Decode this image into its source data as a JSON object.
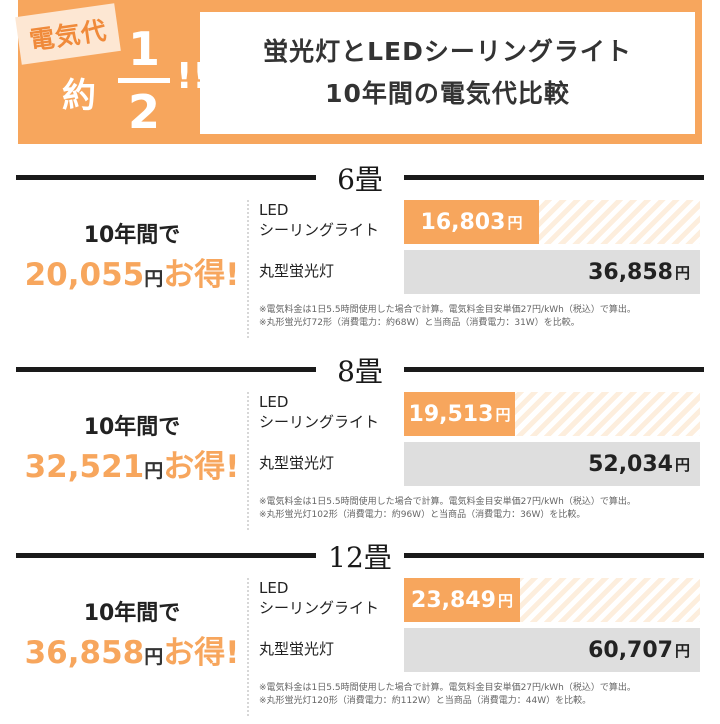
{
  "header": {
    "badge": "電気代",
    "yaku": "約",
    "fraction_num": "1",
    "fraction_den": "2",
    "excl": "!!",
    "title_line1": "蛍光灯とLEDシーリングライト",
    "title_line2": "10年間の電気代比較"
  },
  "colors": {
    "accent": "#f7a65d",
    "gray": "#dedede",
    "dark": "#1a1a1a"
  },
  "sections": [
    {
      "title": "6畳",
      "savings_head": "10年間で",
      "savings_value": "20,055",
      "savings_unit": "円",
      "savings_tail": "お得!",
      "led_label_1": "LED",
      "led_label_2": "シーリングライト",
      "led_value": "16,803",
      "led_amount": 16803,
      "fl_label": "丸型蛍光灯",
      "fl_value": "36,858",
      "fl_amount": 36858,
      "yen": "円",
      "note1": "※電気料金は1日5.5時間使用した場合で計算。電気料金目安単価27円/kWh（税込）で算出。",
      "note2": "※丸形蛍光灯72形（消費電力：約68W）と当商品（消費電力：31W）を比較。"
    },
    {
      "title": "8畳",
      "savings_head": "10年間で",
      "savings_value": "32,521",
      "savings_unit": "円",
      "savings_tail": "お得!",
      "led_label_1": "LED",
      "led_label_2": "シーリングライト",
      "led_value": "19,513",
      "led_amount": 19513,
      "fl_label": "丸型蛍光灯",
      "fl_value": "52,034",
      "fl_amount": 52034,
      "yen": "円",
      "note1": "※電気料金は1日5.5時間使用した場合で計算。電気料金目安単価27円/kWh（税込）で算出。",
      "note2": "※丸形蛍光灯102形（消費電力：約96W）と当商品（消費電力：36W）を比較。"
    },
    {
      "title": "12畳",
      "savings_head": "10年間で",
      "savings_value": "36,858",
      "savings_unit": "円",
      "savings_tail": "お得!",
      "led_label_1": "LED",
      "led_label_2": "シーリングライト",
      "led_value": "23,849",
      "led_amount": 23849,
      "fl_label": "丸型蛍光灯",
      "fl_value": "60,707",
      "fl_amount": 60707,
      "yen": "円",
      "note1": "※電気料金は1日5.5時間使用した場合で計算。電気料金目安単価27円/kWh（税込）で算出。",
      "note2": "※丸形蛍光灯120形（消費電力：約112W）と当商品（消費電力：44W）を比較。"
    }
  ]
}
